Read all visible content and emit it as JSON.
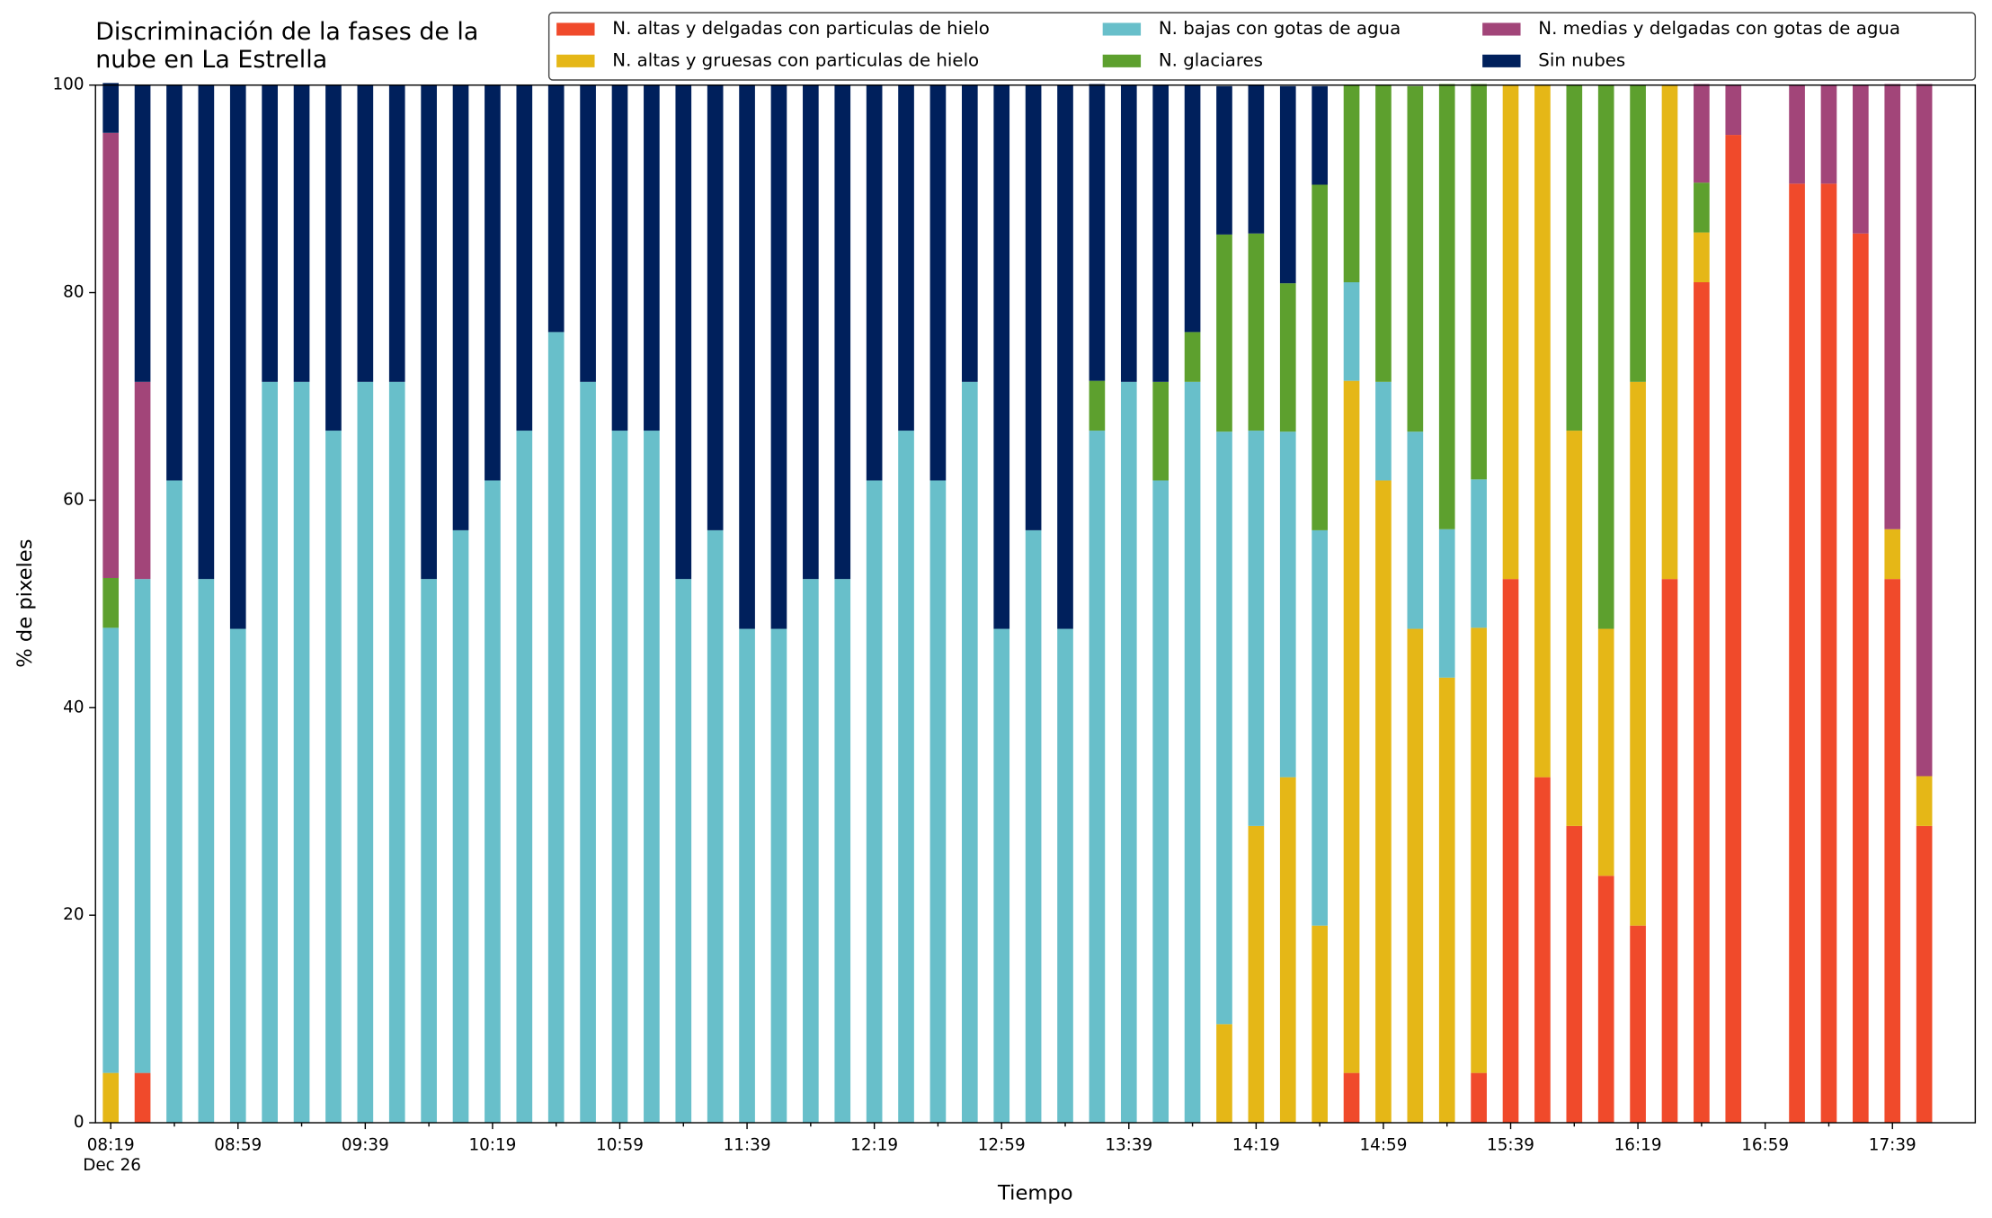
{
  "chart_data": {
    "type": "stacked_bar",
    "title": "Discriminación de la fases de la\nnube en La Estrella",
    "xlabel": "Tiempo",
    "ylabel": "% de pixeles",
    "date_label": "Dec 26",
    "categories": [
      "08:19",
      null,
      null,
      null,
      "08:59",
      null,
      null,
      null,
      "09:39",
      null,
      null,
      null,
      "10:19",
      null,
      null,
      null,
      "10:59",
      null,
      null,
      null,
      "11:39",
      null,
      null,
      null,
      "12:19",
      null,
      null,
      null,
      "12:59",
      null,
      null,
      null,
      "13:39",
      null,
      null,
      null,
      "14:19",
      null,
      null,
      null,
      "14:59",
      null,
      null,
      null,
      "15:39",
      null,
      null,
      null,
      "16:19",
      null,
      null,
      null,
      "16:59",
      null,
      null,
      null,
      "17:39",
      null
    ],
    "ylim": [
      0,
      100
    ],
    "yticks": [
      0,
      20,
      40,
      60,
      80,
      100
    ],
    "legend": "top-right",
    "series": [
      {
        "name": "N. altas y delgadas con particulas de hielo",
        "color": "#f04a2b",
        "values": [
          0,
          4.8,
          0,
          0,
          0,
          0,
          0,
          0,
          0,
          0,
          0,
          0,
          0,
          0,
          0,
          0,
          0,
          0,
          0,
          0,
          0,
          0,
          0,
          0,
          0,
          0,
          0,
          0,
          0,
          0,
          0,
          0,
          0,
          0,
          0,
          0,
          0,
          0,
          0,
          4.8,
          0,
          0,
          0,
          4.8,
          52.4,
          33.3,
          28.6,
          23.8,
          19.0,
          52.4,
          81.0,
          95.2,
          0,
          90.5,
          90.5,
          85.7,
          52.4,
          28.6
        ]
      },
      {
        "name": "N. altas y gruesas con particulas de hielo",
        "color": "#e5b717",
        "values": [
          4.8,
          0,
          0,
          0,
          0,
          0,
          0,
          0,
          0,
          0,
          0,
          0,
          0,
          0,
          0,
          0,
          0,
          0,
          0,
          0,
          0,
          0,
          0,
          0,
          0,
          0,
          0,
          0,
          0,
          0,
          0,
          0,
          0,
          0,
          0,
          9.5,
          28.6,
          33.3,
          19.0,
          66.7,
          61.9,
          47.6,
          42.9,
          42.9,
          47.6,
          66.7,
          38.1,
          23.8,
          52.4,
          47.6,
          4.8,
          0,
          0,
          0,
          0,
          0,
          4.8,
          4.8
        ]
      },
      {
        "name": "N. bajas con gotas de agua",
        "color": "#68bfca",
        "values": [
          42.9,
          47.6,
          61.9,
          52.4,
          47.6,
          71.4,
          71.4,
          66.7,
          71.4,
          71.4,
          52.4,
          57.1,
          61.9,
          66.7,
          76.2,
          71.4,
          66.7,
          66.7,
          52.4,
          57.1,
          47.6,
          47.6,
          52.4,
          52.4,
          61.9,
          66.7,
          61.9,
          71.4,
          47.6,
          57.1,
          47.6,
          66.7,
          71.4,
          61.9,
          71.4,
          57.1,
          38.1,
          33.3,
          38.1,
          9.5,
          9.5,
          19.0,
          14.3,
          14.3,
          0,
          0,
          0,
          0,
          0,
          0,
          0,
          0,
          0,
          0,
          0,
          0,
          0,
          0
        ]
      },
      {
        "name": "N. glaciares",
        "color": "#5da02e",
        "values": [
          4.8,
          0,
          0,
          0,
          0,
          0,
          0,
          0,
          0,
          0,
          0,
          0,
          0,
          0,
          0,
          0,
          0,
          0,
          0,
          0,
          0,
          0,
          0,
          0,
          0,
          0,
          0,
          0,
          0,
          0,
          0,
          4.8,
          0,
          9.5,
          4.8,
          19.0,
          19.0,
          14.3,
          33.3,
          19.0,
          28.6,
          33.3,
          42.9,
          38.1,
          0,
          0,
          33.3,
          52.4,
          28.6,
          0,
          4.8,
          0,
          0,
          0,
          0,
          0,
          0,
          0
        ]
      },
      {
        "name": "N. medias y delgadas con gotas de agua",
        "color": "#a24579",
        "values": [
          42.9,
          19.0,
          0,
          0,
          0,
          0,
          0,
          0,
          0,
          0,
          0,
          0,
          0,
          0,
          0,
          0,
          0,
          0,
          0,
          0,
          0,
          0,
          0,
          0,
          0,
          0,
          0,
          0,
          0,
          0,
          0,
          0,
          0,
          0,
          0,
          0,
          0,
          0,
          0,
          0,
          0,
          0,
          0,
          0,
          0,
          0,
          0,
          0,
          0,
          0,
          9.5,
          4.8,
          0,
          9.5,
          9.5,
          14.3,
          42.9,
          66.7
        ]
      },
      {
        "name": "Sin nubes",
        "color": "#00205c",
        "values": [
          4.8,
          28.6,
          38.1,
          47.6,
          52.4,
          28.6,
          28.6,
          33.3,
          28.6,
          28.6,
          47.6,
          42.9,
          38.1,
          33.3,
          23.8,
          28.6,
          33.3,
          33.3,
          47.6,
          42.9,
          52.4,
          52.4,
          47.6,
          47.6,
          38.1,
          33.3,
          38.1,
          28.6,
          52.4,
          42.9,
          52.4,
          28.6,
          28.6,
          28.6,
          23.8,
          14.3,
          14.3,
          19.0,
          9.5,
          0,
          0,
          0,
          0,
          0,
          0,
          0,
          0,
          0,
          0,
          0,
          0,
          0,
          0,
          0,
          0,
          0,
          0,
          0
        ]
      }
    ]
  }
}
